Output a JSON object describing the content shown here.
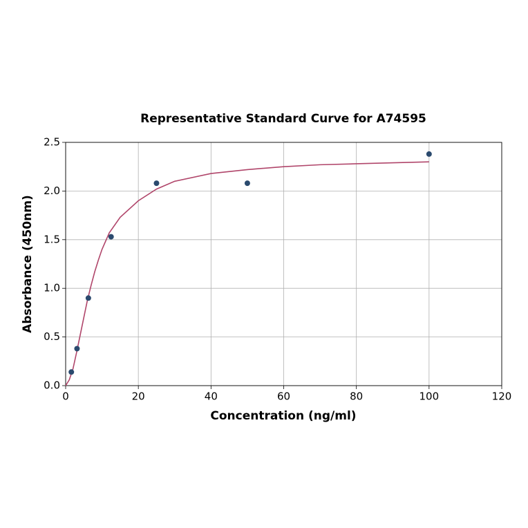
{
  "chart_data": {
    "type": "scatter",
    "title": "Representative Standard Curve for A74595",
    "xlabel": "Concentration (ng/ml)",
    "ylabel": "Absorbance (450nm)",
    "x": [
      1.5625,
      3.125,
      6.25,
      12.5,
      25,
      50,
      100
    ],
    "values": [
      0.14,
      0.38,
      0.9,
      1.53,
      2.08,
      2.08,
      2.38
    ],
    "color": "#2b4a6e",
    "fit": {
      "x": [
        0,
        1,
        2,
        3,
        4,
        5,
        6,
        7,
        8,
        9,
        10,
        12,
        15,
        20,
        25,
        30,
        40,
        50,
        60,
        70,
        80,
        90,
        100
      ],
      "values": [
        0,
        0.06,
        0.17,
        0.34,
        0.52,
        0.7,
        0.88,
        1.03,
        1.17,
        1.29,
        1.4,
        1.57,
        1.73,
        1.9,
        2.02,
        2.1,
        2.18,
        2.22,
        2.25,
        2.27,
        2.28,
        2.29,
        2.3
      ],
      "color": "#b0456a"
    },
    "xlim": [
      0,
      120
    ],
    "xticks": [
      0,
      20,
      40,
      60,
      80,
      100,
      120
    ],
    "ylim": [
      0,
      2.5
    ],
    "yticks": [
      {
        "value": 0,
        "label": "0.0"
      },
      {
        "value": 0.5,
        "label": "0.5"
      },
      {
        "value": 1,
        "label": "1.0"
      },
      {
        "value": 1.5,
        "label": "1.5"
      },
      {
        "value": 2,
        "label": "2.0"
      },
      {
        "value": 2.5,
        "label": "2.5"
      }
    ],
    "grid": true
  }
}
